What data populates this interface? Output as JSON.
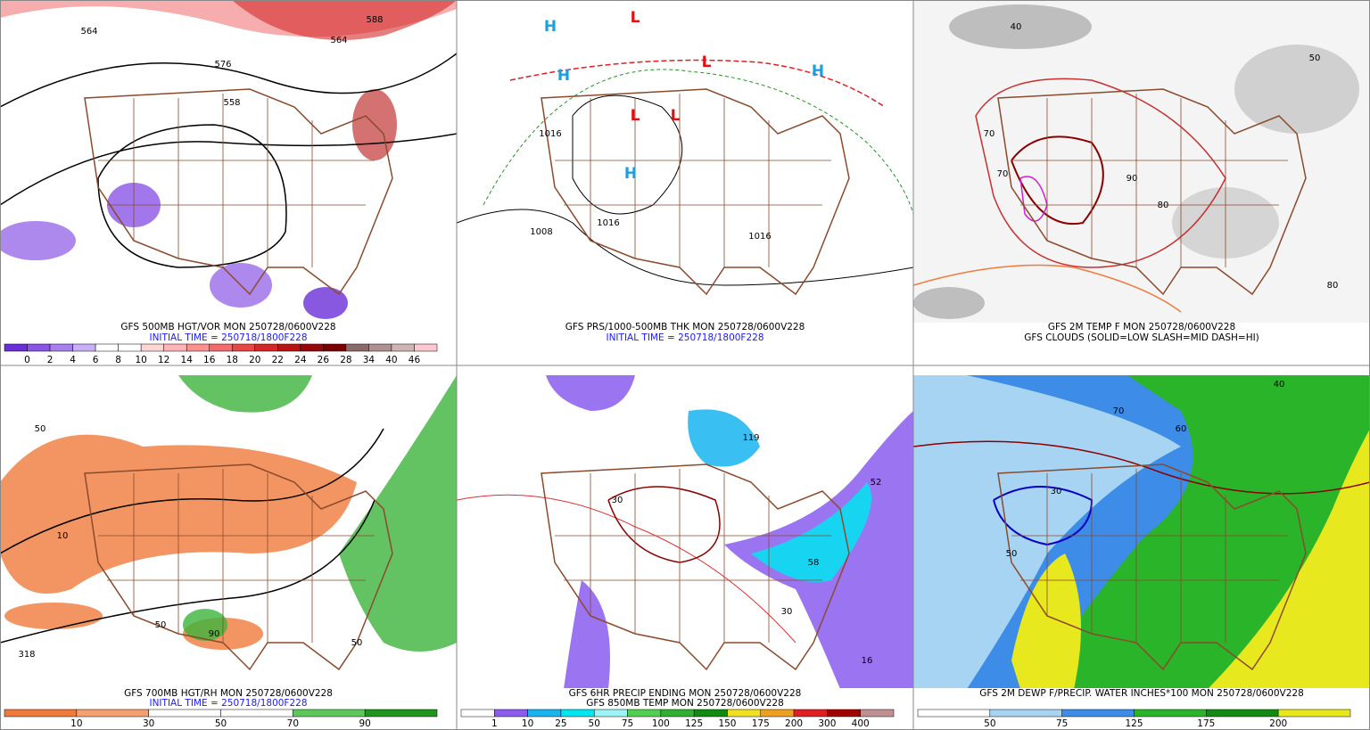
{
  "panels": [
    {
      "title": "GFS 500MB HGT/VOR MON 250728/0600V228",
      "subtitle": "INITIAL TIME = 250718/1800F228",
      "subtitle_color": "#1a1aff",
      "colorbar": {
        "colors": [
          "#6a2fd8",
          "#8a55e6",
          "#a97ff0",
          "#c9b0f6",
          "#ffffff",
          "#ffffff",
          "#ffd6d6",
          "#ffb5b5",
          "#ff9090",
          "#f56a6a",
          "#e84545",
          "#d42828",
          "#b81414",
          "#960808",
          "#7a0000",
          "#8c6a6a",
          "#b09090",
          "#d0b4b4",
          "#ffc8d0"
        ],
        "labels": [
          0,
          2,
          4,
          6,
          8,
          10,
          12,
          14,
          16,
          18,
          20,
          22,
          24,
          26,
          28,
          34,
          40,
          46
        ]
      },
      "map_labels": [
        "564",
        "558",
        "576",
        "564",
        "588"
      ]
    },
    {
      "title": "GFS PRS/1000-500MB THK MON 250728/0600V228",
      "subtitle": "INITIAL TIME = 250718/1800F228",
      "subtitle_color": "#1a1aff",
      "map_labels": [
        "H",
        "H",
        "H",
        "H",
        "L",
        "L",
        "L",
        "L",
        "1016",
        "1008",
        "1016",
        "1016"
      ]
    },
    {
      "title": "GFS 2M TEMP F MON 250728/0600V228",
      "subtitle": "GFS CLOUDS (SOLID=LOW SLASH=MID DASH=HI)",
      "subtitle_color": "#000000",
      "map_labels": [
        "40",
        "50",
        "70",
        "80",
        "90",
        "80",
        "70"
      ]
    },
    {
      "title": "GFS 700MB HGT/RH MON 250728/0600V228",
      "subtitle": "INITIAL TIME = 250718/1800F228",
      "subtitle_color": "#1a1aff",
      "colorbar": {
        "colors": [
          "#f07a3c",
          "#f5a070",
          "#ffffff",
          "#ffffff",
          "#5cc85c",
          "#1e961e"
        ],
        "labels": [
          10,
          30,
          50,
          70,
          90
        ]
      },
      "map_labels": [
        "50",
        "10",
        "50",
        "318",
        "90",
        "50"
      ]
    },
    {
      "title": "GFS 6HR PRECIP ENDING MON 250728/0600V228",
      "subtitle": "GFS 850MB TEMP MON 250728/0600V228",
      "subtitle_color": "#000000",
      "colorbar": {
        "colors": [
          "#ffffff",
          "#8a5cf0",
          "#18b4f0",
          "#00e6f0",
          "#9cf4f4",
          "#50d050",
          "#30b030",
          "#108a10",
          "#f0e020",
          "#f0a020",
          "#e02020",
          "#a00000",
          "#c09090"
        ],
        "labels": [
          1,
          10,
          25,
          50,
          75,
          100,
          125,
          150,
          175,
          200,
          300,
          400
        ]
      },
      "map_labels": [
        "119",
        "30",
        "52",
        "58",
        "30",
        "16"
      ]
    },
    {
      "title": "GFS 2M DEWP F/PRECIP. WATER INCHES*100 MON 250728/0600V228",
      "subtitle_color": "#000000",
      "colorbar": {
        "colors": [
          "#ffffff",
          "#a8d4f4",
          "#3c8ce8",
          "#2ab42a",
          "#138a13",
          "#e8e81e"
        ],
        "labels": [
          50,
          75,
          125,
          175,
          200
        ]
      },
      "map_labels": [
        "30",
        "50",
        "60",
        "40",
        "70"
      ]
    }
  ]
}
